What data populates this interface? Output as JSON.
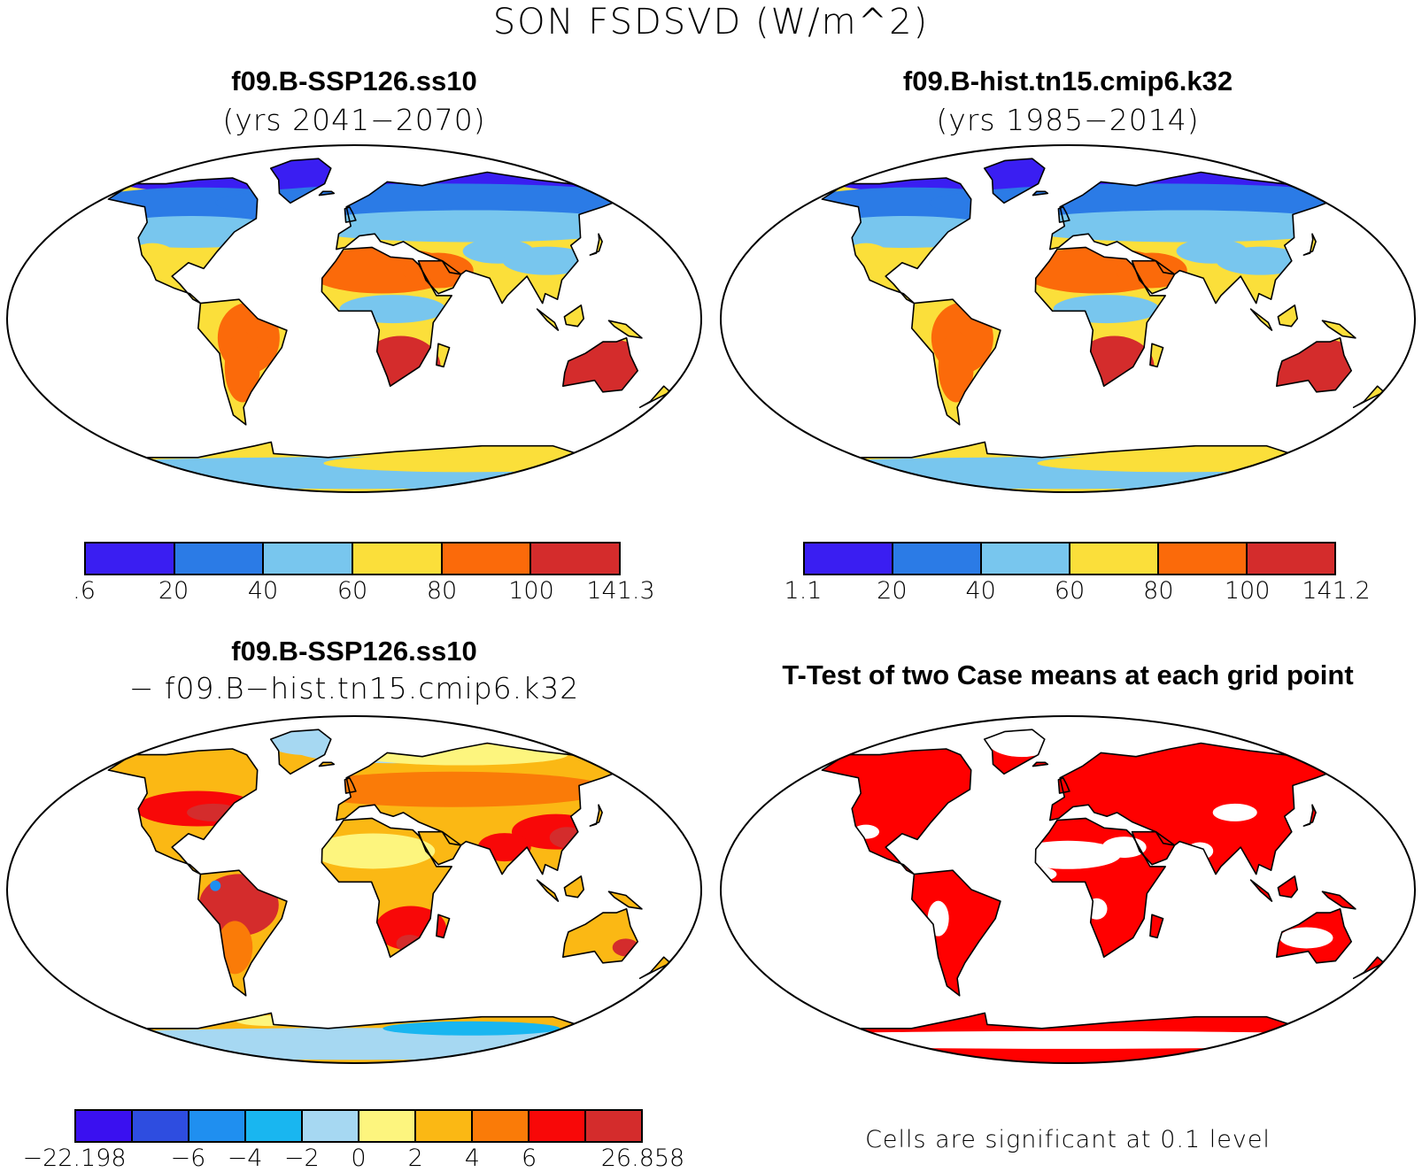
{
  "figure": {
    "title": "SON FSDSVD (W/m^2)"
  },
  "panels": {
    "ssp": {
      "title": "f09.B-SSP126.ss10",
      "subtitle": "(yrs 2041−2070)",
      "colorbar": {
        "labels": [
          ".6",
          "20",
          "40",
          "60",
          "80",
          "100",
          "141.3"
        ],
        "colors": [
          "#3a1ef2",
          "#2b7be6",
          "#78c6ee",
          "#fbdf3a",
          "#fb6a0a",
          "#d42c2c"
        ]
      }
    },
    "hist": {
      "title": "f09.B-hist.tn15.cmip6.k32",
      "subtitle": "(yrs 1985−2014)",
      "colorbar": {
        "labels": [
          "1.1",
          "20",
          "40",
          "60",
          "80",
          "100",
          "141.2"
        ],
        "colors": [
          "#3a1ef2",
          "#2b7be6",
          "#78c6ee",
          "#fbdf3a",
          "#fb6a0a",
          "#d42c2c"
        ]
      }
    },
    "diff": {
      "title": "f09.B-SSP126.ss10",
      "subtitle": "− f09.B−hist.tn15.cmip6.k32",
      "colorbar": {
        "labels": [
          "−22.198",
          "−6",
          "−4",
          "−2",
          "0",
          "2",
          "4",
          "6",
          "26.858"
        ],
        "label_positions": [
          0,
          2,
          3,
          4,
          5,
          6,
          7,
          8,
          10
        ],
        "colors": [
          "#3a10f0",
          "#2e4de0",
          "#1f8ff0",
          "#19b6f0",
          "#a6d8f2",
          "#fdf57e",
          "#fbb814",
          "#fa7b08",
          "#f80808",
          "#d42c2c"
        ]
      }
    },
    "ttest": {
      "title": "T-Test of two Case means at each grid point",
      "note": "Cells are significant at 0.1 level",
      "colors": {
        "significant": "#ff0000"
      }
    }
  }
}
